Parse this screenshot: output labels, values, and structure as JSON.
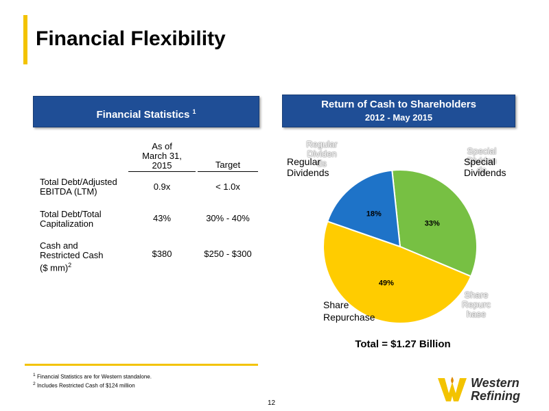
{
  "page": {
    "title": "Financial Flexibility",
    "page_number": "12"
  },
  "stats_panel": {
    "header": "Financial Statistics",
    "header_sup": "1",
    "columns": {
      "as_of": [
        "As of",
        "March 31,",
        "2015"
      ],
      "target": "Target"
    },
    "rows": [
      {
        "label": [
          "Total Debt/Adjusted",
          "EBITDA (LTM)"
        ],
        "value": "0.9x",
        "target": "< 1.0x"
      },
      {
        "label": [
          "Total Debt/Total",
          "Capitalization"
        ],
        "value": "43%",
        "target": "30% - 40%"
      },
      {
        "label": [
          "Cash and",
          "Restricted Cash",
          "($ mm)"
        ],
        "label_sup": "2",
        "value": "$380",
        "target": "$250 - $300"
      }
    ]
  },
  "chart_panel": {
    "header_line1": "Return of Cash to Shareholders",
    "header_line2": "2012 - May 2015",
    "total_label": "Total = $1.27 Billion"
  },
  "chart_data": {
    "type": "pie",
    "title": "Return of Cash to Shareholders",
    "subtitle": "2012 - May 2015",
    "slices": [
      {
        "name": "Special Dividends",
        "value": 33,
        "label": "33%",
        "color": "#77c043"
      },
      {
        "name": "Share Repurchase",
        "value": 49,
        "label": "49%",
        "color": "#ffcc00"
      },
      {
        "name": "Regular Dividends",
        "value": 18,
        "label": "18%",
        "color": "#1e73c8"
      }
    ],
    "category_labels": {
      "regular": [
        "Regular",
        "Dividends"
      ],
      "special": [
        "Special",
        "Dividends"
      ],
      "share": [
        "Share",
        "Repurchase"
      ]
    },
    "ghost_labels": {
      "regular": [
        "Regular",
        "Dividen",
        "ds"
      ],
      "special": [
        "Special",
        "Dividen",
        "ds"
      ],
      "share": [
        "Share",
        "Repurc",
        "hase"
      ]
    }
  },
  "footnotes": {
    "f1_sup": "1",
    "f1": "Financial Statistics are for Western standalone.",
    "f2_sup": "2",
    "f2": "Includes Restricted Cash of $124 million"
  },
  "logo": {
    "line1": "Western",
    "line2": "Refining"
  },
  "colors": {
    "header_blue": "#1f4e96",
    "accent_yellow": "#f3c300"
  }
}
